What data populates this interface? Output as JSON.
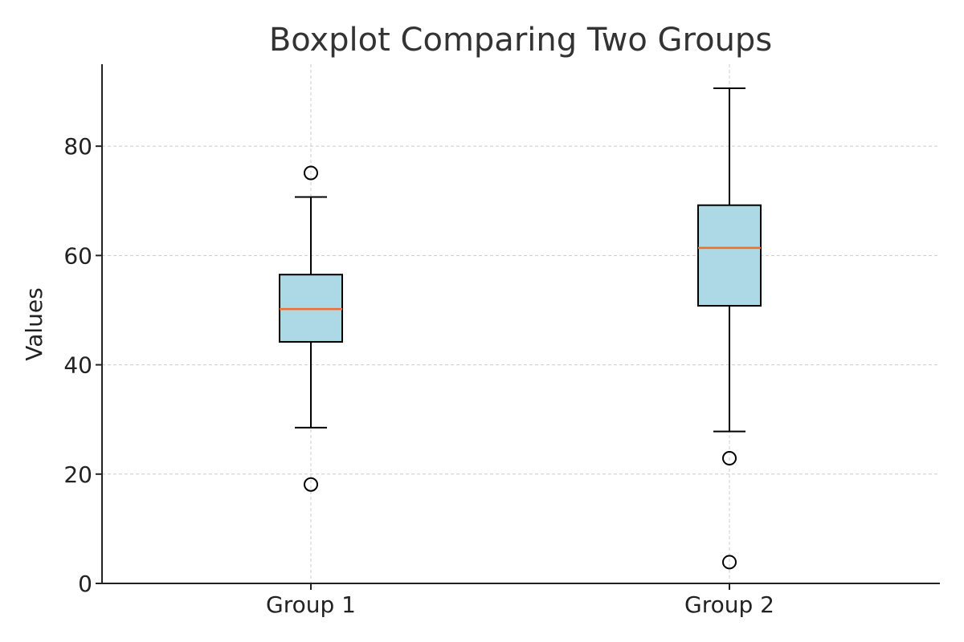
{
  "chart_data": {
    "type": "boxplot",
    "title": "Boxplot Comparing Two Groups",
    "xlabel": "",
    "ylabel": "Values",
    "ylim": [
      0,
      95
    ],
    "yticks": [
      0,
      20,
      40,
      60,
      80
    ],
    "grid": true,
    "categories": [
      "Group 1",
      "Group 2"
    ],
    "boxes": [
      {
        "category": "Group 1",
        "whisker_low": 28.5,
        "q1": 44.2,
        "median": 50.2,
        "q3": 56.5,
        "whisker_high": 70.7,
        "outliers": [
          18.1,
          75.1
        ]
      },
      {
        "category": "Group 2",
        "whisker_low": 27.8,
        "q1": 50.8,
        "median": 61.4,
        "q3": 69.2,
        "whisker_high": 90.6,
        "outliers": [
          22.9,
          3.9
        ]
      }
    ],
    "colors": {
      "box_fill": "#add8e6",
      "median": "#f46d2d",
      "grid": "#cccccc",
      "axis": "#222222"
    }
  }
}
